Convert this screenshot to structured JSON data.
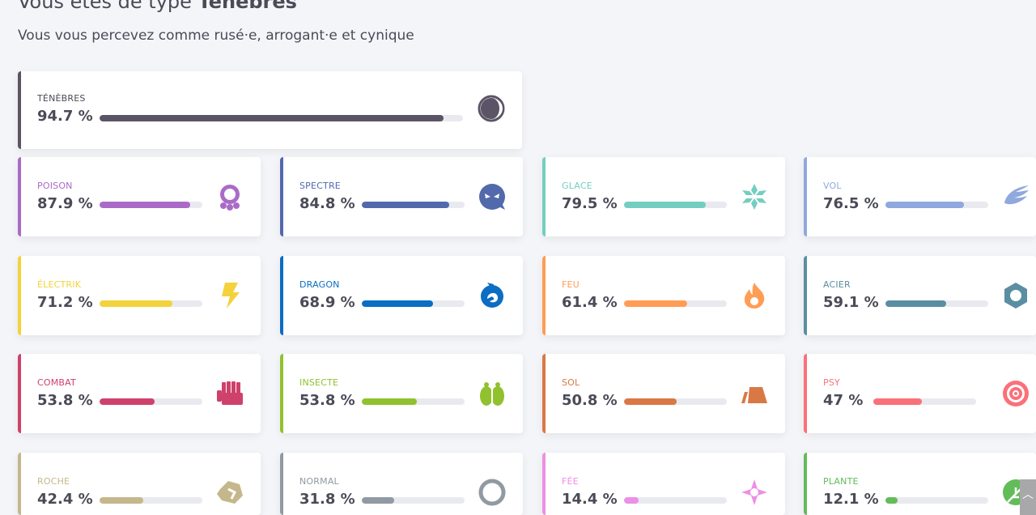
{
  "header": {
    "title_prefix": "Vous êtes de type ",
    "title_type": "Ténèbres",
    "subtitle": "Vous vous percevez comme rusé·e, arrogant·e et cynique"
  },
  "types": [
    {
      "name": "TÉNÈBRES",
      "percent": "94.7 %",
      "value": 94.7,
      "color": "#5b5466",
      "icon": "dark-icon"
    },
    {
      "name": "POISON",
      "percent": "87.9 %",
      "value": 87.9,
      "color": "#aa6bc8",
      "icon": "poison-icon"
    },
    {
      "name": "SPECTRE",
      "percent": "84.8 %",
      "value": 84.8,
      "color": "#5269ac",
      "icon": "ghost-icon"
    },
    {
      "name": "GLACE",
      "percent": "79.5 %",
      "value": 79.5,
      "color": "#73cec0",
      "icon": "ice-icon"
    },
    {
      "name": "VOL",
      "percent": "76.5 %",
      "value": 76.5,
      "color": "#8fa8dd",
      "icon": "flying-icon"
    },
    {
      "name": "ÉLECTRIK",
      "percent": "71.2 %",
      "value": 71.2,
      "color": "#f4d23c",
      "icon": "electric-icon"
    },
    {
      "name": "DRAGON",
      "percent": "68.9 %",
      "value": 68.9,
      "color": "#0b6dc3",
      "icon": "dragon-icon"
    },
    {
      "name": "FEU",
      "percent": "61.4 %",
      "value": 61.4,
      "color": "#ff9d55",
      "icon": "fire-icon"
    },
    {
      "name": "ACIER",
      "percent": "59.1 %",
      "value": 59.1,
      "color": "#5a8ea2",
      "icon": "steel-icon"
    },
    {
      "name": "COMBAT",
      "percent": "53.8 %",
      "value": 53.8,
      "color": "#ce416b",
      "icon": "fighting-icon"
    },
    {
      "name": "INSECTE",
      "percent": "53.8 %",
      "value": 53.8,
      "color": "#91c12f",
      "icon": "bug-icon"
    },
    {
      "name": "SOL",
      "percent": "50.8 %",
      "value": 50.8,
      "color": "#d97845",
      "icon": "ground-icon"
    },
    {
      "name": "PSY",
      "percent": "47 %",
      "value": 47,
      "color": "#fa7179",
      "icon": "psychic-icon"
    },
    {
      "name": "ROCHE",
      "percent": "42.4 %",
      "value": 42.4,
      "color": "#c5b78c",
      "icon": "rock-icon"
    },
    {
      "name": "NORMAL",
      "percent": "31.8 %",
      "value": 31.8,
      "color": "#919aa2",
      "icon": "normal-icon"
    },
    {
      "name": "FÉE",
      "percent": "14.4 %",
      "value": 14.4,
      "color": "#ec8fe6",
      "icon": "fairy-icon"
    },
    {
      "name": "PLANTE",
      "percent": "12.1 %",
      "value": 12.1,
      "color": "#63bc5a",
      "icon": "grass-icon"
    }
  ]
}
